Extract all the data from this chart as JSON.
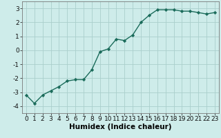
{
  "x": [
    0,
    1,
    2,
    3,
    4,
    5,
    6,
    7,
    8,
    9,
    10,
    11,
    12,
    13,
    14,
    15,
    16,
    17,
    18,
    19,
    20,
    21,
    22,
    23
  ],
  "y": [
    -3.2,
    -3.8,
    -3.2,
    -2.9,
    -2.6,
    -2.2,
    -2.1,
    -2.1,
    -1.4,
    -0.1,
    0.1,
    0.8,
    0.7,
    1.1,
    2.0,
    2.5,
    2.9,
    2.9,
    2.9,
    2.8,
    2.8,
    2.7,
    2.6,
    2.7
  ],
  "line_color": "#1a6b5a",
  "marker": "D",
  "marker_size": 2.2,
  "bg_color": "#ceecea",
  "grid_color": "#aacfcc",
  "xlabel": "Humidex (Indice chaleur)",
  "ylim": [
    -4.5,
    3.5
  ],
  "xlim": [
    -0.5,
    23.5
  ],
  "yticks": [
    -4,
    -3,
    -2,
    -1,
    0,
    1,
    2,
    3
  ],
  "xticks": [
    0,
    1,
    2,
    3,
    4,
    5,
    6,
    7,
    8,
    9,
    10,
    11,
    12,
    13,
    14,
    15,
    16,
    17,
    18,
    19,
    20,
    21,
    22,
    23
  ],
  "xlabel_fontsize": 7.5,
  "tick_fontsize": 6.5,
  "line_width": 1.0
}
